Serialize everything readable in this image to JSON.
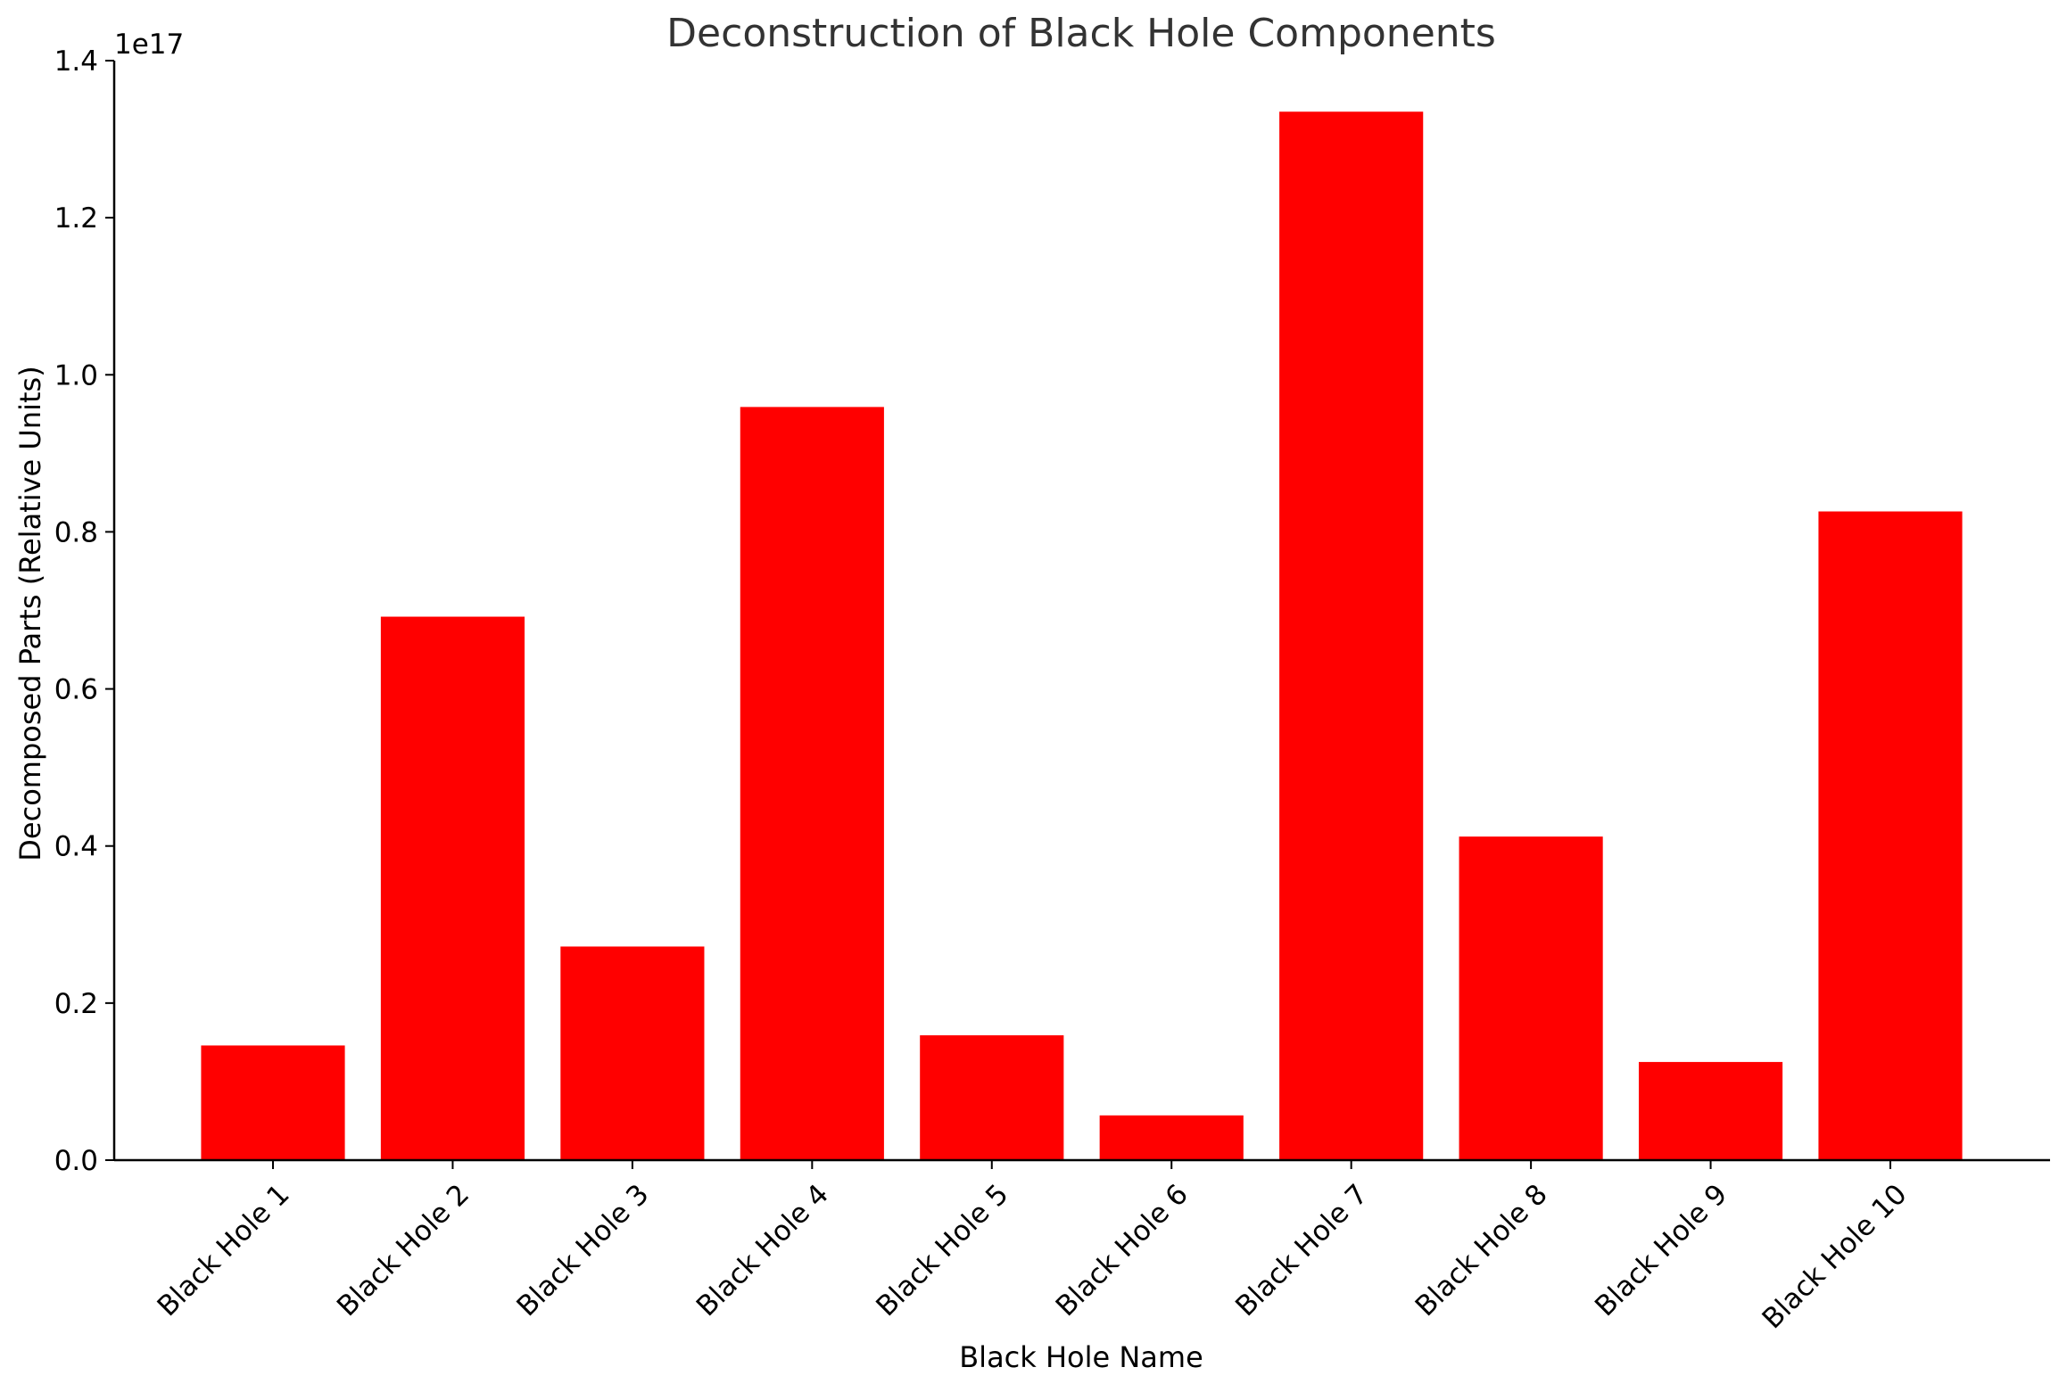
{
  "chart_data": {
    "type": "bar",
    "title": "Deconstruction of Black Hole Components",
    "xlabel": "Black Hole Name",
    "ylabel": "Decomposed Parts (Relative Units)",
    "y_offset_label": "1e17",
    "y_scale": 1e+17,
    "ylim": [
      0,
      1.4
    ],
    "yticks": [
      0.0,
      0.2,
      0.4,
      0.6,
      0.8,
      1.0,
      1.2,
      1.4
    ],
    "ytick_labels": [
      "0.0",
      "0.2",
      "0.4",
      "0.6",
      "0.8",
      "1.0",
      "1.2",
      "1.4"
    ],
    "categories": [
      "Black Hole 1",
      "Black Hole 2",
      "Black Hole 3",
      "Black Hole 4",
      "Black Hole 5",
      "Black Hole 6",
      "Black Hole 7",
      "Black Hole 8",
      "Black Hole 9",
      "Black Hole 10"
    ],
    "values": [
      0.146,
      0.692,
      0.272,
      0.959,
      0.159,
      0.057,
      1.335,
      0.412,
      0.125,
      0.826
    ],
    "bar_color": "#ff0000",
    "grid": false
  }
}
